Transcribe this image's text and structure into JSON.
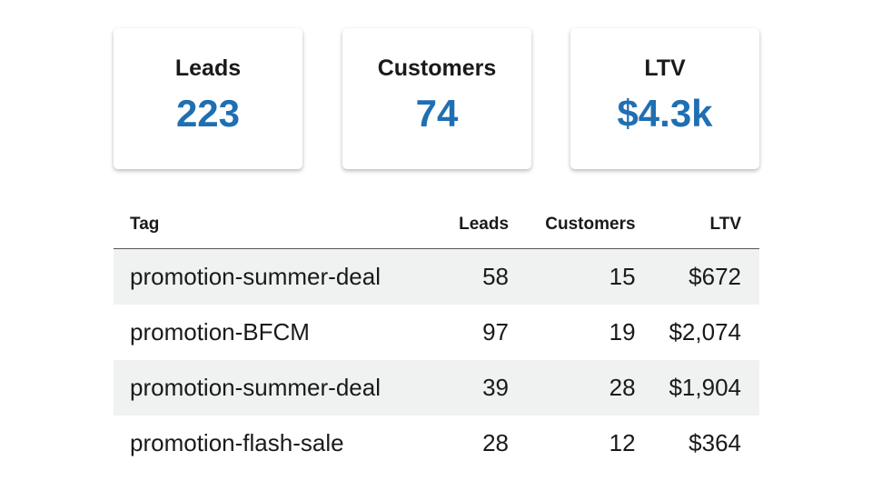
{
  "cards": [
    {
      "label": "Leads",
      "value": "223"
    },
    {
      "label": "Customers",
      "value": "74"
    },
    {
      "label": "LTV",
      "value": "$4.3k"
    }
  ],
  "table": {
    "header": [
      "Tag",
      "Leads",
      "Customers",
      "LTV"
    ],
    "rows": [
      [
        "promotion-summer-deal",
        "58",
        "15",
        "$672"
      ],
      [
        "promotion-BFCM",
        "97",
        "19",
        "$2,074"
      ],
      [
        "promotion-summer-deal",
        "39",
        "28",
        "$1,904"
      ],
      [
        "promotion-flash-sale",
        "28",
        "12",
        "$364"
      ]
    ]
  }
}
